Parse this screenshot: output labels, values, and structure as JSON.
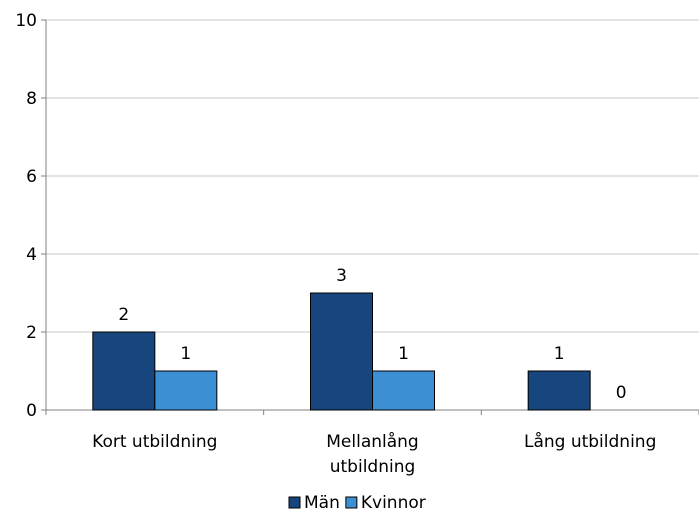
{
  "chart_data": {
    "type": "bar",
    "categories": [
      [
        "Kort utbildning"
      ],
      [
        "Mellanlång",
        "utbildning"
      ],
      [
        "Lång utbildning"
      ]
    ],
    "series": [
      {
        "name": "Män",
        "values": [
          2,
          3,
          1
        ],
        "color": "#17467f"
      },
      {
        "name": "Kvinnor",
        "values": [
          1,
          1,
          0
        ],
        "color": "#3c8fd3"
      }
    ],
    "ylim": [
      0,
      10
    ],
    "yticks": [
      0,
      2,
      4,
      6,
      8,
      10
    ],
    "grid": true,
    "legend_position": "bottom"
  }
}
